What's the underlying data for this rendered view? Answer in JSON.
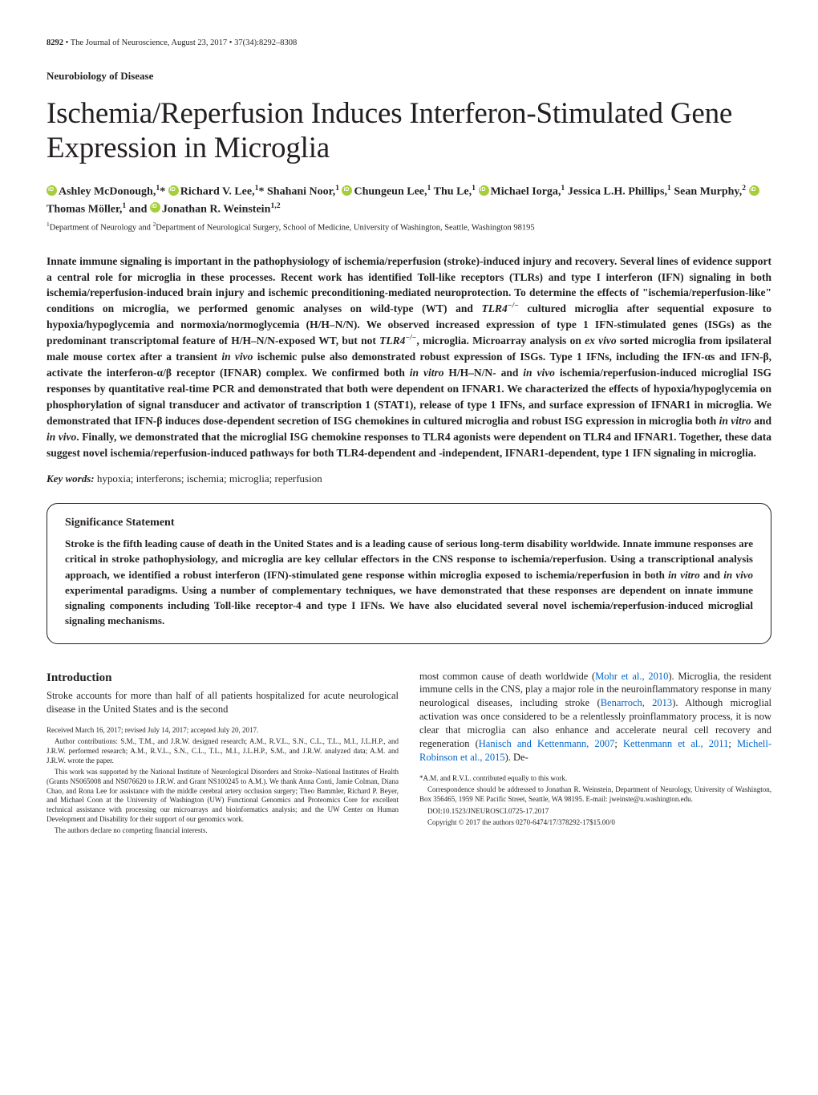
{
  "header": {
    "page": "8292",
    "journal": "The Journal of Neuroscience",
    "date": "August 23, 2017",
    "issue": "37(34):8292–8308"
  },
  "section": "Neurobiology of Disease",
  "title": "Ischemia/Reperfusion Induces Interferon-Stimulated Gene Expression in Microglia",
  "authors_html": "<span class='orcid'></span>Ashley McDonough,<sup>1</sup>* <span class='orcid'></span>Richard V. Lee,<sup>1</sup>* Shahani Noor,<sup>1</sup> <span class='orcid'></span>Chungeun Lee,<sup>1</sup> Thu Le,<sup>1</sup> <span class='orcid'></span>Michael Iorga,<sup>1</sup> Jessica L.H. Phillips,<sup>1</sup> Sean Murphy,<sup>2</sup> <span class='orcid'></span>Thomas Möller,<sup>1</sup> and <span class='orcid'></span>Jonathan R. Weinstein<sup>1,2</sup>",
  "affiliations": "<sup>1</sup>Department of Neurology and <sup>2</sup>Department of Neurological Surgery, School of Medicine, University of Washington, Seattle, Washington 98195",
  "abstract": "Innate immune signaling is important in the pathophysiology of ischemia/reperfusion (stroke)-induced injury and recovery. Several lines of evidence support a central role for microglia in these processes. Recent work has identified Toll-like receptors (TLRs) and type I interferon (IFN) signaling in both ischemia/reperfusion-induced brain injury and ischemic preconditioning-mediated neuroprotection. To determine the effects of \"ischemia/reperfusion-like\" conditions on microglia, we performed genomic analyses on wild-type (WT) and <i>TLR4<sup>−/−</sup></i> cultured microglia after sequential exposure to hypoxia/hypoglycemia and normoxia/normoglycemia (H/H–N/N). We observed increased expression of type 1 IFN-stimulated genes (ISGs) as the predominant transcriptomal feature of H/H–N/N-exposed WT, but not <i>TLR4<sup>−/−</sup></i>, microglia. Microarray analysis on <i>ex vivo</i> sorted microglia from ipsilateral male mouse cortex after a transient <i>in vivo</i> ischemic pulse also demonstrated robust expression of ISGs. Type 1 IFNs, including the IFN-αs and IFN-β, activate the interferon-α/β receptor (IFNAR) complex. We confirmed both <i>in vitro</i> H/H–N/N- and <i>in vivo</i> ischemia/reperfusion-induced microglial ISG responses by quantitative real-time PCR and demonstrated that both were dependent on IFNAR1. We characterized the effects of hypoxia/hypoglycemia on phosphorylation of signal transducer and activator of transcription 1 (STAT1), release of type 1 IFNs, and surface expression of IFNAR1 in microglia. We demonstrated that IFN-β induces dose-dependent secretion of ISG chemokines in cultured microglia and robust ISG expression in microglia both <i>in vitro</i> and <i>in vivo</i>. Finally, we demonstrated that the microglial ISG chemokine responses to TLR4 agonists were dependent on TLR4 and IFNAR1. Together, these data suggest novel ischemia/reperfusion-induced pathways for both TLR4-dependent and -independent, IFNAR1-dependent, type 1 IFN signaling in microglia.",
  "keywords_label": "Key words:",
  "keywords": "hypoxia; interferons; ischemia; microglia; reperfusion",
  "sig_title": "Significance Statement",
  "sig_body": "Stroke is the fifth leading cause of death in the United States and is a leading cause of serious long-term disability worldwide. Innate immune responses are critical in stroke pathophysiology, and microglia are key cellular effectors in the CNS response to ischemia/reperfusion. Using a transcriptional analysis approach, we identified a robust interferon (IFN)-stimulated gene response within microglia exposed to ischemia/reperfusion in both <i>in vitro</i> and <i>in vivo</i> experimental paradigms. Using a number of complementary techniques, we have demonstrated that these responses are dependent on innate immune signaling components including Toll-like receptor-4 and type I IFNs. We have also elucidated several novel ischemia/reperfusion-induced microglial signaling mechanisms.",
  "intro_heading": "Introduction",
  "col1_para": "Stroke accounts for more than half of all patients hospitalized for acute neurological disease in the United States and is the second",
  "col2_para": "most common cause of death worldwide (<a class='ref' href='#'>Mohr et al., 2010</a>). Microglia, the resident immune cells in the CNS, play a major role in the neuroinflammatory response in many neurological diseases, including stroke (<a class='ref' href='#'>Benarroch, 2013</a>). Although microglial activation was once considered to be a relentlessly proinflammatory process, it is now clear that microglia can also enhance and accelerate neural cell recovery and regeneration (<a class='ref' href='#'>Hanisch and Kettenmann, 2007</a>; <a class='ref' href='#'>Kettenmann et al., 2011</a>; <a class='ref' href='#'>Michell-Robinson et al., 2015</a>). De-",
  "fine_left": {
    "received": "Received March 16, 2017; revised July 14, 2017; accepted July 20, 2017.",
    "contrib": "Author contributions: S.M., T.M., and J.R.W. designed research; A.M., R.V.L., S.N., C.L., T.L., M.I., J.L.H.P., and J.R.W. performed research; A.M., R.V.L., S.N., C.L., T.L., M.I., J.L.H.P., S.M., and J.R.W. analyzed data; A.M. and J.R.W. wrote the paper.",
    "funding": "This work was supported by the National Institute of Neurological Disorders and Stroke–National Institutes of Health (Grants NS065008 and NS076620 to J.R.W. and Grant NS100245 to A.M.). We thank Anna Conti, Jamie Colman, Diana Chao, and Rona Lee for assistance with the middle cerebral artery occlusion surgery; Theo Bammler, Richard P. Beyer, and Michael Coon at the University of Washington (UW) Functional Genomics and Proteomics Core for excellent technical assistance with processing our microarrays and bioinformatics analysis; and the UW Center on Human Development and Disability for their support of our genomics work.",
    "competing": "The authors declare no competing financial interests."
  },
  "fine_right": {
    "equal": "*A.M. and R.V.L. contributed equally to this work.",
    "corr": "Correspondence should be addressed to Jonathan R. Weinstein, Department of Neurology, University of Washington, Box 356465, 1959 NE Pacific Street, Seattle, WA 98195. E-mail: jweinste@u.washington.edu.",
    "doi": "DOI:10.1523/JNEUROSCI.0725-17.2017",
    "copyright": "Copyright © 2017 the authors   0270-6474/17/378292-17$15.00/0"
  }
}
